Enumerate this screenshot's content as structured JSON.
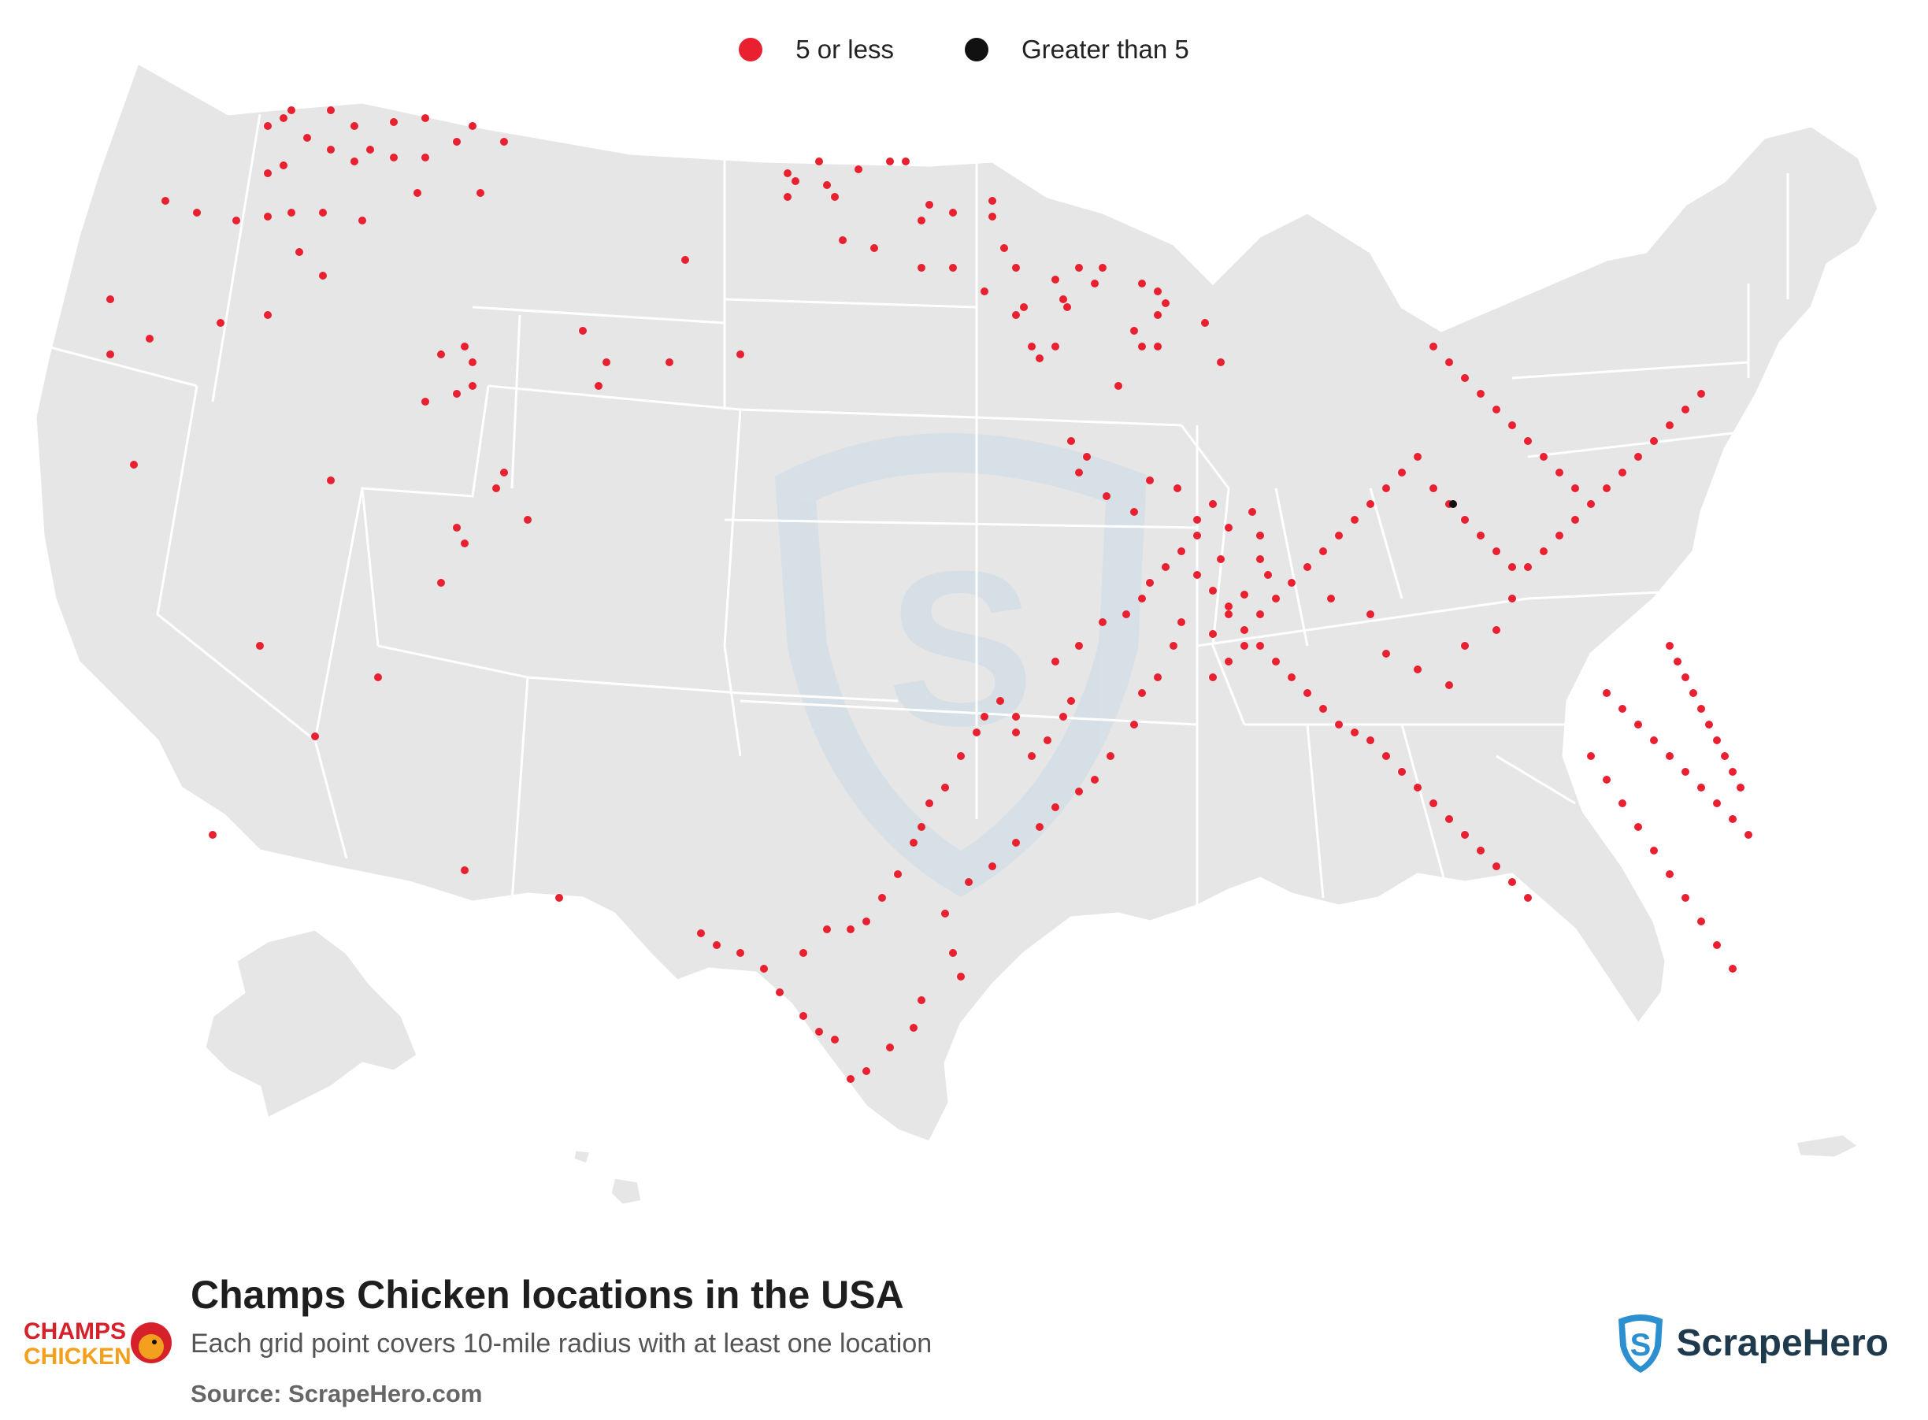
{
  "legend": {
    "items": [
      {
        "label": "5 or less",
        "color": "#e8202f"
      },
      {
        "label": "Greater than 5",
        "color": "#111111"
      }
    ]
  },
  "footer": {
    "title": "Champs Chicken locations in the USA",
    "subtitle": "Each grid point covers 10-mile radius with at least one location",
    "source": "Source: ScrapeHero.com",
    "brand_name": "ScrapeHero",
    "logo_line1": "CHAMPS",
    "logo_line2": "CHICKEN"
  },
  "colors": {
    "land": "#e6e6e6",
    "borders": "#ffffff",
    "dot_small": "#e8202f",
    "dot_large": "#111111",
    "watermark": "#c9dbe6",
    "brand_blue": "#2b8fd0"
  },
  "icons": [
    "location-dot",
    "scrapehero-shield-icon",
    "rooster-icon"
  ]
}
